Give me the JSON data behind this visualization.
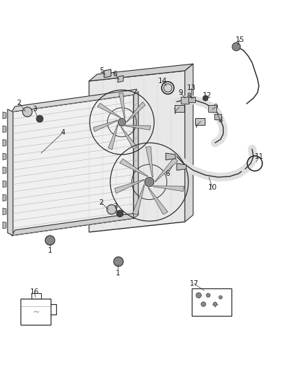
{
  "bg_color": "#ffffff",
  "fig_width": 4.38,
  "fig_height": 5.33,
  "dpi": 100,
  "line_color": "#2a2a2a",
  "text_color": "#1a1a1a",
  "gray_light": "#c8c8c8",
  "gray_med": "#888888",
  "gray_dark": "#444444"
}
